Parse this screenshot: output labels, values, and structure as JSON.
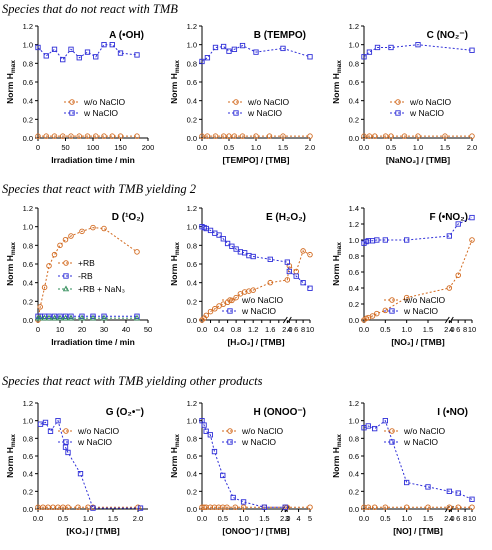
{
  "sections": [
    {
      "title": "Species that do not react with TMB"
    },
    {
      "title": "Species that react with TMB yielding 2"
    },
    {
      "title": "Species that react with TMB yielding other products"
    }
  ],
  "colors": {
    "orange": "#d2691e",
    "blue": "#2f2fd8",
    "green": "#2e8b57",
    "grey": "#888888"
  },
  "y_axis_label": "Norm H",
  "y_axis_sub": "max",
  "chart_data": [
    {
      "id": "A",
      "title_prefix": "A (",
      "title_main": "•OH",
      "title_suffix": ")",
      "type": "line",
      "xlabel": "Irradiation time / min",
      "xlim": [
        0,
        200
      ],
      "xticks": [
        0,
        50,
        100,
        150,
        200
      ],
      "xtick_labels": [
        "0",
        "50",
        "100",
        "150",
        "200"
      ],
      "ylim": [
        0,
        1.2
      ],
      "yticks": [
        0,
        0.2,
        0.4,
        0.6,
        0.8,
        1.0,
        1.2
      ],
      "ytick_labels": [
        "0.0",
        "0.2",
        "0.4",
        "0.6",
        "0.8",
        "1.0",
        "1.2"
      ],
      "legend": "center-right",
      "series": [
        {
          "name": "w/o NaClO",
          "color": "orange",
          "marker": "circle",
          "x": [
            0,
            15,
            30,
            45,
            60,
            75,
            90,
            105,
            120,
            135,
            150,
            180
          ],
          "y": [
            0.02,
            0.02,
            0.02,
            0.02,
            0.02,
            0.02,
            0.02,
            0.02,
            0.02,
            0.02,
            0.02,
            0.02
          ]
        },
        {
          "name": "w NaClO",
          "color": "blue",
          "marker": "square",
          "x": [
            0,
            15,
            30,
            45,
            60,
            75,
            90,
            105,
            120,
            135,
            150,
            180
          ],
          "y": [
            0.97,
            0.88,
            0.95,
            0.84,
            0.95,
            0.86,
            0.92,
            0.87,
            1.0,
            1.0,
            0.91,
            0.89
          ]
        }
      ]
    },
    {
      "id": "B",
      "title_prefix": "B (",
      "title_main": "TEMPO",
      "title_suffix": ")",
      "type": "line",
      "xlabel": "[TEMPO] / [TMB]",
      "xlim": [
        0,
        2.0
      ],
      "xticks": [
        0,
        0.5,
        1.0,
        1.5,
        2.0
      ],
      "xtick_labels": [
        "0.0",
        "0.5",
        "1.0",
        "1.5",
        "2.0"
      ],
      "ylim": [
        0,
        1.2
      ],
      "yticks": [
        0,
        0.2,
        0.4,
        0.6,
        0.8,
        1.0,
        1.2
      ],
      "ytick_labels": [
        "0.0",
        "0.2",
        "0.4",
        "0.6",
        "0.8",
        "1.0",
        "1.2"
      ],
      "legend": "center-right",
      "series": [
        {
          "name": "w/o NaClO",
          "color": "orange",
          "marker": "circle",
          "x": [
            0,
            0.1,
            0.25,
            0.4,
            0.5,
            0.6,
            0.75,
            1.0,
            1.25,
            1.5,
            2.0
          ],
          "y": [
            0.02,
            0.02,
            0.02,
            0.02,
            0.02,
            0.02,
            0.02,
            0.02,
            0.02,
            0.02,
            0.02
          ]
        },
        {
          "name": "w NaClO",
          "color": "blue",
          "marker": "square",
          "x": [
            0,
            0.1,
            0.25,
            0.4,
            0.5,
            0.6,
            0.75,
            1.0,
            1.5,
            2.0
          ],
          "y": [
            0.82,
            0.86,
            0.97,
            0.98,
            0.93,
            0.95,
            0.99,
            0.92,
            0.96,
            0.87
          ]
        }
      ]
    },
    {
      "id": "C",
      "title_prefix": "C (",
      "title_main": "NO₂⁻",
      "title_suffix": ")",
      "type": "line",
      "xlabel": "[NaNO₂] / [TMB]",
      "xlim": [
        0,
        2.0
      ],
      "xticks": [
        0,
        0.5,
        1.0,
        1.5,
        2.0
      ],
      "xtick_labels": [
        "0.0",
        "0.5",
        "1.0",
        "1.5",
        "2.0"
      ],
      "ylim": [
        0,
        1.2
      ],
      "yticks": [
        0,
        0.2,
        0.4,
        0.6,
        0.8,
        1.0,
        1.2
      ],
      "ytick_labels": [
        "0.0",
        "0.2",
        "0.4",
        "0.6",
        "0.8",
        "1.0",
        "1.2"
      ],
      "legend": "center-right",
      "series": [
        {
          "name": "w/o NaClO",
          "color": "orange",
          "marker": "circle",
          "x": [
            0,
            0.1,
            0.2,
            0.4,
            0.5,
            0.75,
            1.0,
            1.5,
            2.0
          ],
          "y": [
            0.02,
            0.02,
            0.02,
            0.02,
            0.02,
            0.02,
            0.02,
            0.02,
            0.02
          ]
        },
        {
          "name": "w NaClO",
          "color": "blue",
          "marker": "square",
          "x": [
            0,
            0.1,
            0.25,
            0.5,
            1.0,
            2.0
          ],
          "y": [
            0.87,
            0.92,
            0.97,
            0.97,
            1.0,
            0.94
          ]
        }
      ]
    },
    {
      "id": "D",
      "title_prefix": "D (",
      "title_main": "¹O₂",
      "title_suffix": ")",
      "type": "line",
      "xlabel": "Irradiation time / min",
      "xlim": [
        0,
        50
      ],
      "xticks": [
        0,
        10,
        20,
        30,
        40,
        50
      ],
      "xtick_labels": [
        "0",
        "10",
        "20",
        "30",
        "40",
        "50"
      ],
      "ylim": [
        0,
        1.2
      ],
      "yticks": [
        0,
        0.2,
        0.4,
        0.6,
        0.8,
        1.0,
        1.2
      ],
      "ytick_labels": [
        "0.0",
        "0.2",
        "0.4",
        "0.6",
        "0.8",
        "1.0",
        "1.2"
      ],
      "legend": "center",
      "series": [
        {
          "name": "+RB",
          "color": "orange",
          "marker": "circle",
          "x": [
            0,
            1,
            3,
            5,
            7.5,
            10,
            12.5,
            15,
            20,
            25,
            30,
            45
          ],
          "y": [
            0.0,
            0.14,
            0.35,
            0.58,
            0.7,
            0.8,
            0.86,
            0.9,
            0.95,
            0.99,
            0.98,
            0.73
          ]
        },
        {
          "name": "-RB",
          "color": "blue",
          "marker": "square",
          "x": [
            0,
            1,
            3,
            5,
            7.5,
            10,
            12.5,
            15,
            20,
            25,
            30,
            45
          ],
          "y": [
            0.04,
            0.04,
            0.04,
            0.04,
            0.04,
            0.04,
            0.04,
            0.04,
            0.04,
            0.04,
            0.04,
            0.04
          ]
        },
        {
          "name": "+RB + NaN₃",
          "color": "green",
          "marker": "triangle",
          "x": [
            0,
            1,
            3,
            5,
            7.5,
            10,
            12.5,
            15,
            20,
            25,
            30,
            45
          ],
          "y": [
            0.02,
            0.02,
            0.02,
            0.02,
            0.02,
            0.02,
            0.02,
            0.02,
            0.02,
            0.02,
            0.02,
            0.02
          ]
        }
      ]
    },
    {
      "id": "E",
      "title_prefix": "E (",
      "title_main": "H₂O₂",
      "title_suffix": ")",
      "type": "line",
      "xlabel": "[H₂O₂] / [TMB]",
      "xlim": [
        0,
        10
      ],
      "xbreak": {
        "at": 2.0,
        "resume": 4,
        "frac": 0.79
      },
      "xticks": [
        0,
        0.2,
        0.4,
        0.6,
        0.8,
        1.0,
        1.2,
        1.4,
        1.6,
        1.8,
        2.0,
        4,
        6,
        8,
        10
      ],
      "xtick_labels": [
        "0.0",
        "",
        "0.4",
        "",
        "0.8",
        "",
        "1.2",
        "",
        "1.6",
        "",
        "2.0",
        "4",
        "6",
        "8",
        "10"
      ],
      "ylim": [
        0,
        1.2
      ],
      "yticks": [
        0,
        0.2,
        0.4,
        0.6,
        0.8,
        1.0,
        1.2
      ],
      "ytick_labels": [
        "0.0",
        "0.2",
        "0.4",
        "0.6",
        "0.8",
        "1.0",
        "1.2"
      ],
      "legend": "bottom-center",
      "series": [
        {
          "name": "w/o NaClO",
          "color": "orange",
          "marker": "circle",
          "x": [
            0,
            0.05,
            0.1,
            0.2,
            0.3,
            0.4,
            0.5,
            0.6,
            0.7,
            0.8,
            0.9,
            1.0,
            1.1,
            1.2,
            1.6,
            2.0,
            4,
            6,
            8,
            10
          ],
          "y": [
            0.0,
            0.02,
            0.05,
            0.09,
            0.12,
            0.15,
            0.17,
            0.19,
            0.21,
            0.24,
            0.28,
            0.3,
            0.31,
            0.32,
            0.4,
            0.43,
            0.58,
            0.52,
            0.74,
            0.7
          ]
        },
        {
          "name": "w NaClO",
          "color": "blue",
          "marker": "square",
          "x": [
            0,
            0.05,
            0.1,
            0.2,
            0.3,
            0.4,
            0.5,
            0.6,
            0.7,
            0.8,
            0.9,
            1.0,
            1.1,
            1.2,
            1.6,
            2.0,
            4,
            6,
            8,
            10
          ],
          "y": [
            1.0,
            0.99,
            0.98,
            0.96,
            0.93,
            0.91,
            0.87,
            0.82,
            0.79,
            0.76,
            0.73,
            0.72,
            0.69,
            0.68,
            0.65,
            0.62,
            0.52,
            0.47,
            0.4,
            0.34
          ]
        }
      ]
    },
    {
      "id": "F",
      "title_prefix": "F (",
      "title_main": "•NO₂",
      "title_suffix": ")",
      "type": "line",
      "xlabel": "[NO₂] / [TMB]",
      "xlim": [
        0,
        10
      ],
      "xbreak": {
        "at": 2.0,
        "resume": 4,
        "frac": 0.79
      },
      "xticks": [
        0,
        0.5,
        1.0,
        1.5,
        2.0,
        4,
        6,
        8,
        10
      ],
      "xtick_labels": [
        "0.0",
        "0.5",
        "1.0",
        "1.5",
        "2.0",
        "4",
        "6",
        "8",
        "10"
      ],
      "ylim": [
        0,
        1.4
      ],
      "yticks": [
        0,
        0.2,
        0.4,
        0.6,
        0.8,
        1.0,
        1.2,
        1.4
      ],
      "ytick_labels": [
        "0.0",
        "0.2",
        "0.4",
        "0.6",
        "0.8",
        "1.0",
        "1.2",
        "1.4"
      ],
      "legend": "bottom-center",
      "series": [
        {
          "name": "w/o NaClO",
          "color": "orange",
          "marker": "circle",
          "x": [
            0,
            0.05,
            0.1,
            0.2,
            0.3,
            0.5,
            1.0,
            2.0,
            6,
            10
          ],
          "y": [
            0.0,
            0.02,
            0.03,
            0.05,
            0.08,
            0.12,
            0.28,
            0.4,
            0.56,
            1.0
          ]
        },
        {
          "name": "w NaClO",
          "color": "blue",
          "marker": "square",
          "x": [
            0,
            0.05,
            0.1,
            0.2,
            0.3,
            0.5,
            1.0,
            2.0,
            6,
            10
          ],
          "y": [
            0.96,
            0.98,
            0.99,
            0.99,
            1.0,
            1.0,
            1.0,
            1.05,
            1.2,
            1.28
          ]
        }
      ]
    },
    {
      "id": "G",
      "title_prefix": "G (",
      "title_main": "O₂•⁻",
      "title_suffix": ")",
      "type": "line",
      "xlabel": "[KO₂] / [TMB]",
      "xlim": [
        0,
        2.2
      ],
      "xticks": [
        0,
        0.5,
        1.0,
        1.5,
        2.0
      ],
      "xtick_labels": [
        "0.0",
        "0.5",
        "1.0",
        "1.5",
        "2.0"
      ],
      "ylim": [
        0,
        1.2
      ],
      "yticks": [
        0,
        0.2,
        0.4,
        0.6,
        0.8,
        1.0,
        1.2
      ],
      "ytick_labels": [
        "0.0",
        "0.2",
        "0.4",
        "0.6",
        "0.8",
        "1.0",
        "1.2"
      ],
      "legend": "top-right",
      "series": [
        {
          "name": "w/o NaClO",
          "color": "orange",
          "marker": "circle",
          "x": [
            0,
            0.1,
            0.2,
            0.3,
            0.4,
            0.5,
            0.6,
            0.8,
            1.0,
            1.1,
            2.0
          ],
          "y": [
            0.02,
            0.02,
            0.02,
            0.02,
            0.02,
            0.02,
            0.02,
            0.02,
            0.02,
            0.02,
            0.02
          ]
        },
        {
          "name": "w NaClO",
          "color": "blue",
          "marker": "square",
          "x": [
            0.05,
            0.15,
            0.25,
            0.4,
            0.55,
            0.6,
            0.85,
            1.1,
            2.05
          ],
          "y": [
            0.96,
            0.98,
            0.88,
            1.0,
            0.7,
            0.64,
            0.4,
            0.01,
            0.01
          ]
        }
      ]
    },
    {
      "id": "H",
      "title_prefix": "H (",
      "title_main": "ONOO⁻",
      "title_suffix": ")",
      "type": "line",
      "xlabel": "[ONOO⁻] / [TMB]",
      "xlim": [
        0,
        5
      ],
      "xbreak": {
        "at": 2.0,
        "resume": 3,
        "frac": 0.77
      },
      "xticks": [
        0,
        0.5,
        1.0,
        1.5,
        2.0,
        3,
        4,
        5
      ],
      "xtick_labels": [
        "0.0",
        "0.5",
        "1.0",
        "1.5",
        "2.0",
        "3",
        "4",
        "5"
      ],
      "ylim": [
        0,
        1.2
      ],
      "yticks": [
        0,
        0.2,
        0.4,
        0.6,
        0.8,
        1.0,
        1.2
      ],
      "ytick_labels": [
        "0.0",
        "0.2",
        "0.4",
        "0.6",
        "0.8",
        "1.0",
        "1.2"
      ],
      "legend": "top-right",
      "series": [
        {
          "name": "w/o NaClO",
          "color": "orange",
          "marker": "circle",
          "x": [
            0,
            0.05,
            0.1,
            0.2,
            0.3,
            0.4,
            0.5,
            0.6,
            0.8,
            1.0,
            1.5,
            2.0,
            3,
            5
          ],
          "y": [
            0.02,
            0.02,
            0.02,
            0.02,
            0.02,
            0.02,
            0.02,
            0.02,
            0.02,
            0.02,
            0.02,
            0.02,
            0.02,
            0.02
          ]
        },
        {
          "name": "w NaClO",
          "color": "blue",
          "marker": "square",
          "x": [
            0,
            0.05,
            0.1,
            0.2,
            0.3,
            0.5,
            0.75,
            1.0,
            1.5,
            2.0
          ],
          "y": [
            1.0,
            0.95,
            0.88,
            0.84,
            0.65,
            0.38,
            0.13,
            0.08,
            0.02,
            0.02
          ]
        }
      ]
    },
    {
      "id": "I",
      "title_prefix": "I (",
      "title_main": "•NO",
      "title_suffix": ")",
      "type": "line",
      "xlabel": "[NO] / [TMB]",
      "xlim": [
        0,
        10
      ],
      "xbreak": {
        "at": 2.0,
        "resume": 4,
        "frac": 0.79
      },
      "xticks": [
        0,
        0.5,
        1.0,
        1.5,
        2.0,
        4,
        6,
        8,
        10
      ],
      "xtick_labels": [
        "0.0",
        "0.5",
        "1.0",
        "1.5",
        "2.0",
        "4",
        "6",
        "8",
        "10"
      ],
      "ylim": [
        0,
        1.2
      ],
      "yticks": [
        0,
        0.2,
        0.4,
        0.6,
        0.8,
        1.0,
        1.2
      ],
      "ytick_labels": [
        "0.0",
        "0.2",
        "0.4",
        "0.6",
        "0.8",
        "1.0",
        "1.2"
      ],
      "legend": "top-right",
      "series": [
        {
          "name": "w/o NaClO",
          "color": "orange",
          "marker": "circle",
          "x": [
            0,
            0.1,
            0.25,
            0.5,
            1.0,
            1.5,
            2.0,
            6,
            10
          ],
          "y": [
            0.02,
            0.02,
            0.02,
            0.02,
            0.02,
            0.02,
            0.02,
            0.02,
            0.02
          ]
        },
        {
          "name": "w NaClO",
          "color": "blue",
          "marker": "square",
          "x": [
            0,
            0.1,
            0.25,
            0.5,
            1.0,
            1.5,
            2.0,
            6,
            10
          ],
          "y": [
            0.92,
            0.94,
            0.91,
            1.0,
            0.3,
            0.25,
            0.2,
            0.18,
            0.11
          ]
        }
      ]
    }
  ]
}
